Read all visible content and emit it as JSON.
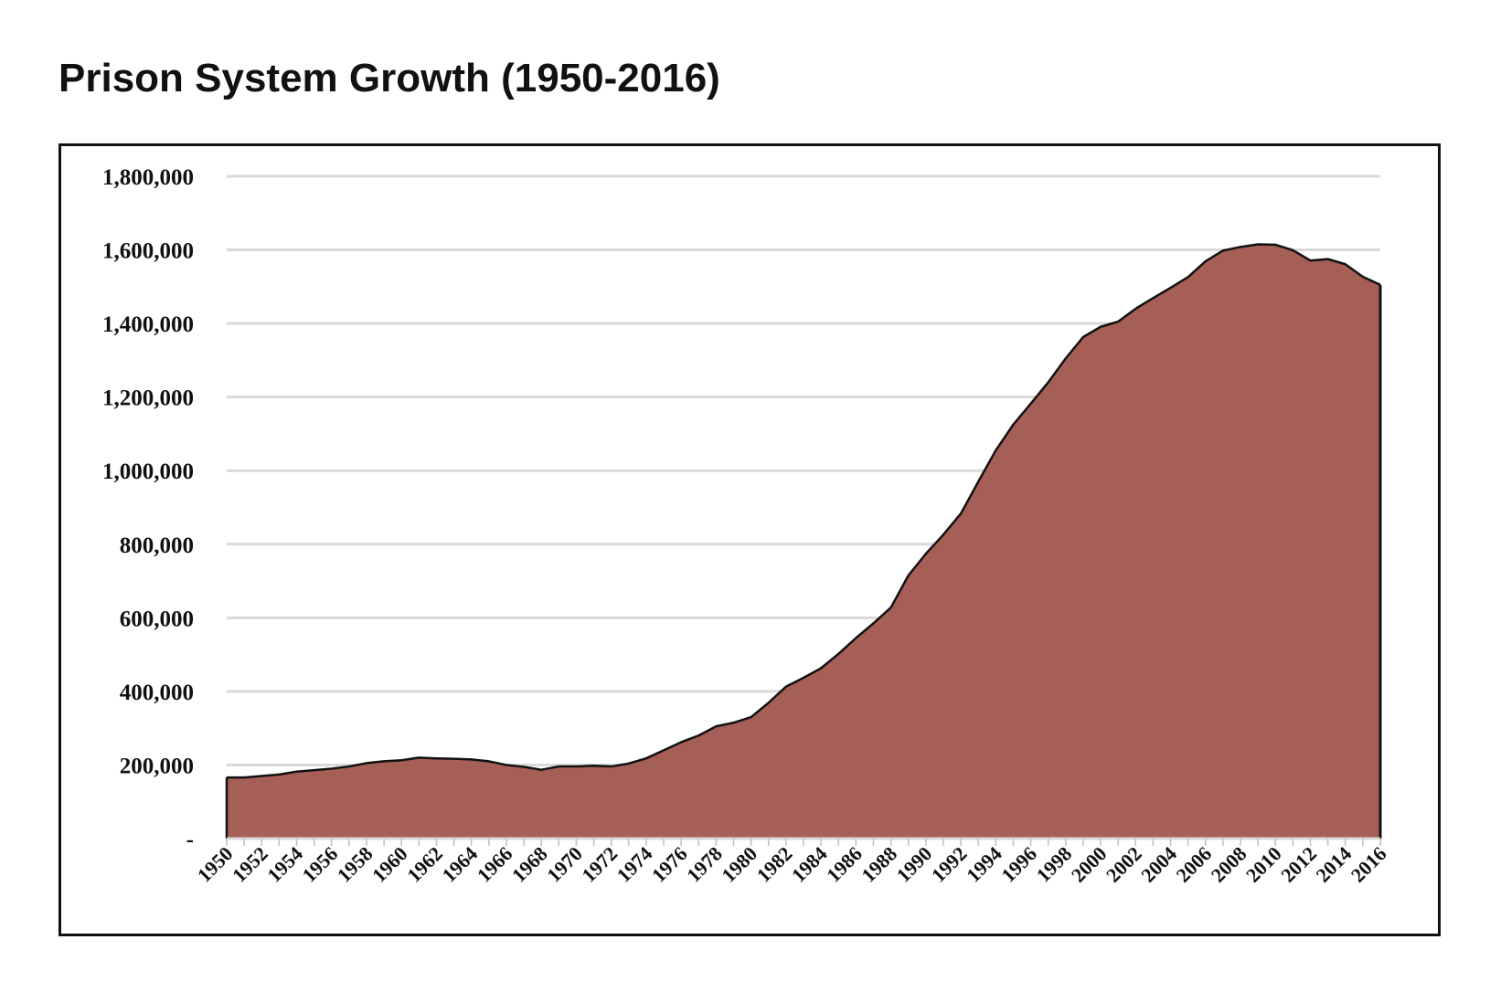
{
  "title": "Prison System Growth (1950-2016)",
  "chart_data": {
    "type": "area",
    "title": "Prison System Growth (1950-2016)",
    "xlabel": "",
    "ylabel": "",
    "ylim": [
      0,
      1800000
    ],
    "yticks": [
      0,
      200000,
      400000,
      600000,
      800000,
      1000000,
      1200000,
      1400000,
      1600000,
      1800000
    ],
    "ytick_labels": [
      "-",
      "200,000",
      "400,000",
      "600,000",
      "800,000",
      "1,000,000",
      "1,200,000",
      "1,400,000",
      "1,600,000",
      "1,800,000"
    ],
    "xtick_labels": [
      "1950",
      "1952",
      "1954",
      "1956",
      "1958",
      "1960",
      "1962",
      "1964",
      "1966",
      "1968",
      "1970",
      "1972",
      "1974",
      "1976",
      "1978",
      "1980",
      "1982",
      "1984",
      "1986",
      "1988",
      "1990",
      "1992",
      "1994",
      "1996",
      "1998",
      "2000",
      "2002",
      "2004",
      "2006",
      "2008",
      "2010",
      "2012",
      "2014",
      "2016"
    ],
    "grid": true,
    "fill_color": "#A65F57",
    "line_color": "#111111",
    "x": [
      1950,
      1951,
      1952,
      1953,
      1954,
      1955,
      1956,
      1957,
      1958,
      1959,
      1960,
      1961,
      1962,
      1963,
      1964,
      1965,
      1966,
      1967,
      1968,
      1969,
      1970,
      1971,
      1972,
      1973,
      1974,
      1975,
      1976,
      1977,
      1978,
      1979,
      1980,
      1981,
      1982,
      1983,
      1984,
      1985,
      1986,
      1987,
      1988,
      1989,
      1990,
      1991,
      1992,
      1993,
      1994,
      1995,
      1996,
      1997,
      1998,
      1999,
      2000,
      2001,
      2002,
      2003,
      2004,
      2005,
      2006,
      2007,
      2008,
      2009,
      2010,
      2011,
      2012,
      2013,
      2014,
      2015,
      2016
    ],
    "values": [
      166000,
      166000,
      170000,
      174000,
      182000,
      186000,
      190000,
      196000,
      205000,
      210000,
      213000,
      220000,
      218000,
      217000,
      215000,
      210000,
      200000,
      195000,
      187000,
      196000,
      196000,
      198000,
      196000,
      204000,
      218000,
      240000,
      262000,
      280000,
      305000,
      315000,
      330000,
      369000,
      413000,
      437000,
      463000,
      502000,
      545000,
      585000,
      628000,
      715000,
      774000,
      826000,
      883000,
      970000,
      1055000,
      1125000,
      1182000,
      1240000,
      1305000,
      1363000,
      1391000,
      1405000,
      1440000,
      1469000,
      1497000,
      1526000,
      1569000,
      1598000,
      1608000,
      1615000,
      1614000,
      1599000,
      1571000,
      1575000,
      1561000,
      1527000,
      1505000
    ]
  }
}
